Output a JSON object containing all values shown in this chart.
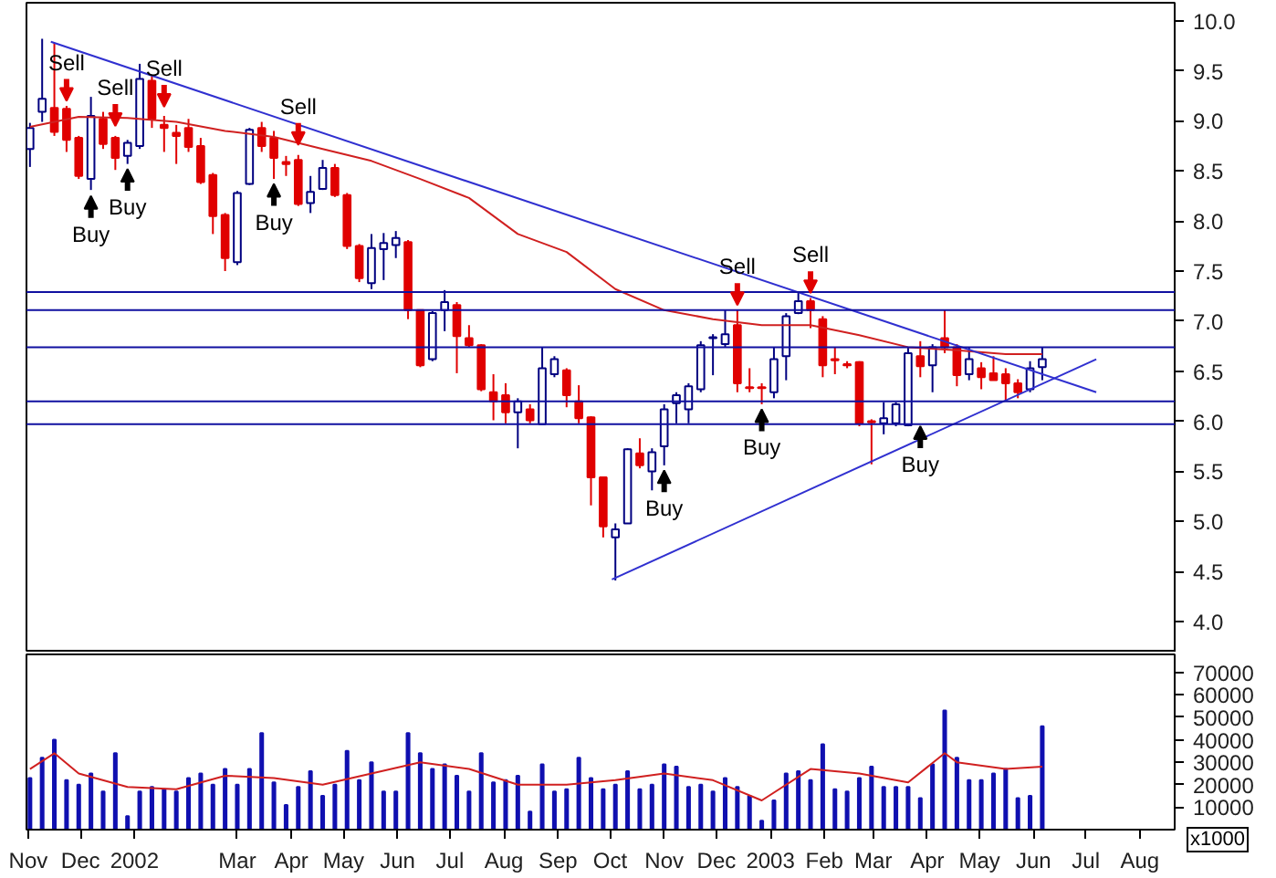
{
  "chart_data": [
    {
      "type": "candlestick",
      "colors": [
        "#ffffff",
        "#ffffff",
        "#e00000",
        "#e00000",
        "#e00000",
        "#ffffff",
        "#e00000",
        "#e00000",
        "#ffffff",
        "#ffffff",
        "#e00000",
        "#e00000",
        "#e00000",
        "#e00000",
        "#e00000",
        "#e00000",
        "#e00000",
        "#ffffff",
        "#ffffff",
        "#e00000",
        "#e00000",
        "#e00000",
        "#e00000",
        "#ffffff",
        "#ffffff",
        "#e00000",
        "#e00000",
        "#e00000",
        "#ffffff",
        "#ffffff",
        "#ffffff",
        "#e00000",
        "#e00000",
        "#ffffff",
        "#ffffff",
        "#e00000",
        "#e00000",
        "#e00000",
        "#e00000",
        "#e00000",
        "#ffffff",
        "#e00000",
        "#ffffff",
        "#ffffff",
        "#e00000",
        "#e00000",
        "#e00000",
        "#e00000",
        "#ffffff",
        "#ffffff",
        "#e00000",
        "#ffffff",
        "#ffffff",
        "#ffffff",
        "#ffffff",
        "#ffffff",
        "#ffffff",
        "#ffffff",
        "#e00000",
        "#e00000",
        "#e00000",
        "#ffffff",
        "#ffffff",
        "#ffffff",
        "#e00000",
        "#e00000",
        "#e00000",
        "#e00000",
        "#e00000",
        "#e00000",
        "#ffffff",
        "#ffffff",
        "#ffffff",
        "#e00000",
        "#ffffff",
        "#e00000",
        "#e00000",
        "#ffffff",
        "#e00000",
        "#e00000",
        "#e00000",
        "#e00000",
        "#ffffff",
        "#ffffff"
      ],
      "xlim": [
        "2001-10-31",
        "2003-08-21"
      ],
      "ylim": [
        3.69,
        10.18
      ],
      "tick_labels": "y",
      "yticks": [
        {
          "value": 4,
          "label": "4.0"
        },
        {
          "value": 4.5,
          "label": "4.5"
        },
        {
          "value": 5,
          "label": "5.0"
        },
        {
          "value": 5.5,
          "label": "5.5"
        },
        {
          "value": 6,
          "label": "6.0"
        },
        {
          "value": 6.5,
          "label": "6.5"
        },
        {
          "value": 7,
          "label": "7.0"
        },
        {
          "value": 7.5,
          "label": "7.5"
        },
        {
          "value": 8,
          "label": "8.0"
        },
        {
          "value": 8.5,
          "label": "8.5"
        },
        {
          "value": 9,
          "label": "9.0"
        },
        {
          "value": 9.5,
          "label": "9.5"
        },
        {
          "value": 10,
          "label": "10.0"
        }
      ],
      "x": [
        "2001-11-02",
        "2001-11-09",
        "2001-11-16",
        "2001-11-23",
        "2001-11-30",
        "2001-12-07",
        "2001-12-14",
        "2001-12-21",
        "2001-12-28",
        "2002-01-04",
        "2002-01-11",
        "2002-01-18",
        "2002-01-25",
        "2002-02-01",
        "2002-02-08",
        "2002-02-15",
        "2002-02-22",
        "2002-03-01",
        "2002-03-08",
        "2002-03-15",
        "2002-03-22",
        "2002-03-29",
        "2002-04-05",
        "2002-04-12",
        "2002-04-19",
        "2002-04-26",
        "2002-05-03",
        "2002-05-10",
        "2002-05-17",
        "2002-05-24",
        "2002-05-31",
        "2002-06-07",
        "2002-06-14",
        "2002-06-21",
        "2002-06-28",
        "2002-07-05",
        "2002-07-12",
        "2002-07-19",
        "2002-07-26",
        "2002-08-02",
        "2002-08-09",
        "2002-08-16",
        "2002-08-23",
        "2002-08-30",
        "2002-09-06",
        "2002-09-13",
        "2002-09-20",
        "2002-09-27",
        "2002-10-04",
        "2002-10-11",
        "2002-10-18",
        "2002-10-25",
        "2002-11-01",
        "2002-11-08",
        "2002-11-15",
        "2002-11-22",
        "2002-11-29",
        "2002-12-06",
        "2002-12-13",
        "2002-12-20",
        "2002-12-27",
        "2003-01-03",
        "2003-01-10",
        "2003-01-17",
        "2003-01-24",
        "2003-01-31",
        "2003-02-07",
        "2003-02-14",
        "2003-02-21",
        "2003-02-28",
        "2003-03-07",
        "2003-03-14",
        "2003-03-21",
        "2003-03-28",
        "2003-04-04",
        "2003-04-11",
        "2003-04-18",
        "2003-04-25",
        "2003-05-02",
        "2003-05-09",
        "2003-05-16",
        "2003-05-23",
        "2003-05-30",
        "2003-06-06"
      ],
      "ohlc": [
        [
          8.72,
          8.98,
          8.54,
          8.93
        ],
        [
          9.09,
          9.82,
          8.99,
          9.22
        ],
        [
          9.13,
          9.78,
          8.85,
          8.89
        ],
        [
          9.12,
          9.15,
          8.69,
          8.81
        ],
        [
          8.83,
          8.85,
          8.42,
          8.45
        ],
        [
          8.42,
          9.24,
          8.31,
          9.05
        ],
        [
          9.02,
          9.09,
          8.72,
          8.77
        ],
        [
          8.83,
          8.85,
          8.51,
          8.63
        ],
        [
          8.65,
          8.81,
          8.57,
          8.78
        ],
        [
          8.75,
          9.57,
          8.72,
          9.42
        ],
        [
          9.4,
          9.46,
          8.93,
          9.02
        ],
        [
          8.96,
          9.05,
          8.69,
          8.93
        ],
        [
          8.88,
          8.96,
          8.57,
          8.85
        ],
        [
          8.93,
          9.02,
          8.69,
          8.74
        ],
        [
          8.75,
          8.83,
          8.37,
          8.39
        ],
        [
          8.46,
          8.48,
          7.87,
          8.05
        ],
        [
          8.06,
          8.08,
          7.5,
          7.63
        ],
        [
          7.59,
          8.3,
          7.56,
          8.28
        ],
        [
          8.37,
          8.93,
          8.36,
          8.91
        ],
        [
          8.93,
          8.99,
          8.69,
          8.75
        ],
        [
          8.83,
          8.9,
          8.42,
          8.63
        ],
        [
          8.59,
          8.65,
          8.45,
          8.57
        ],
        [
          8.61,
          8.66,
          8.15,
          8.17
        ],
        [
          8.18,
          8.45,
          8.08,
          8.29
        ],
        [
          8.32,
          8.61,
          8.31,
          8.53
        ],
        [
          8.53,
          8.57,
          8.24,
          8.26
        ],
        [
          8.26,
          8.28,
          7.72,
          7.75
        ],
        [
          7.75,
          7.77,
          7.39,
          7.43
        ],
        [
          7.38,
          7.87,
          7.32,
          7.73
        ],
        [
          7.72,
          7.88,
          7.41,
          7.78
        ],
        [
          7.76,
          7.9,
          7.63,
          7.83
        ],
        [
          7.79,
          7.81,
          7.02,
          7.11
        ],
        [
          7.11,
          7.11,
          6.54,
          6.56
        ],
        [
          6.62,
          7.1,
          6.6,
          7.08
        ],
        [
          7.11,
          7.31,
          6.9,
          7.19
        ],
        [
          7.16,
          7.19,
          6.48,
          6.85
        ],
        [
          6.83,
          6.96,
          6.74,
          6.76
        ],
        [
          6.76,
          6.77,
          6.3,
          6.32
        ],
        [
          6.29,
          6.47,
          6.01,
          6.2
        ],
        [
          6.26,
          6.38,
          5.98,
          6.09
        ],
        [
          6.09,
          6.23,
          5.73,
          6.2
        ],
        [
          6.12,
          6.17,
          5.98,
          6.01
        ],
        [
          5.97,
          6.74,
          5.97,
          6.53
        ],
        [
          6.47,
          6.65,
          6.44,
          6.62
        ],
        [
          6.51,
          6.53,
          6.14,
          6.26
        ],
        [
          6.2,
          6.36,
          5.98,
          6.03
        ],
        [
          6.04,
          6.05,
          5.16,
          5.44
        ],
        [
          5.44,
          5.44,
          4.84,
          4.95
        ],
        [
          4.84,
          4.98,
          4.41,
          4.92
        ],
        [
          4.98,
          5.73,
          4.98,
          5.72
        ],
        [
          5.68,
          5.83,
          5.53,
          5.56
        ],
        [
          5.5,
          5.73,
          5.31,
          5.69
        ],
        [
          5.75,
          6.17,
          5.56,
          6.12
        ],
        [
          6.18,
          6.29,
          5.98,
          6.26
        ],
        [
          6.12,
          6.38,
          5.98,
          6.35
        ],
        [
          6.32,
          6.8,
          6.29,
          6.76
        ],
        [
          6.83,
          6.87,
          6.46,
          6.84
        ],
        [
          6.77,
          7.11,
          6.74,
          6.87
        ],
        [
          6.96,
          7.11,
          6.29,
          6.38
        ],
        [
          6.34,
          6.53,
          6.29,
          6.33
        ],
        [
          6.34,
          6.38,
          6.17,
          6.33
        ],
        [
          6.29,
          6.74,
          6.23,
          6.62
        ],
        [
          6.65,
          7.08,
          6.41,
          7.05
        ],
        [
          7.08,
          7.29,
          7.07,
          7.2
        ],
        [
          7.2,
          7.23,
          6.93,
          7.11
        ],
        [
          7.02,
          7.05,
          6.44,
          6.56
        ],
        [
          6.62,
          6.74,
          6.47,
          6.61
        ],
        [
          6.57,
          6.6,
          6.53,
          6.56
        ],
        [
          6.59,
          6.6,
          5.95,
          5.98
        ],
        [
          6.0,
          6.02,
          5.57,
          5.99
        ],
        [
          5.98,
          6.19,
          5.87,
          6.03
        ],
        [
          5.98,
          6.19,
          5.95,
          6.17
        ],
        [
          5.96,
          6.74,
          5.95,
          6.68
        ],
        [
          6.65,
          6.8,
          6.44,
          6.55
        ],
        [
          6.56,
          6.77,
          6.29,
          6.74
        ],
        [
          6.83,
          7.11,
          6.68,
          6.74
        ],
        [
          6.74,
          6.77,
          6.35,
          6.46
        ],
        [
          6.47,
          6.74,
          6.41,
          6.62
        ],
        [
          6.53,
          6.59,
          6.32,
          6.44
        ],
        [
          6.48,
          6.65,
          6.41,
          6.41
        ],
        [
          6.47,
          6.53,
          6.2,
          6.38
        ],
        [
          6.38,
          6.42,
          6.23,
          6.29
        ],
        [
          6.32,
          6.6,
          6.29,
          6.53
        ],
        [
          6.54,
          6.74,
          6.41,
          6.62
        ]
      ],
      "series": [
        {
          "type": "line",
          "color": "#d02020",
          "x": [
            "2001-11-02",
            "2001-11-30",
            "2001-12-28",
            "2002-01-25",
            "2002-02-22",
            "2002-03-22",
            "2002-04-19",
            "2002-05-17",
            "2002-06-14",
            "2002-07-12",
            "2002-08-09",
            "2002-09-06",
            "2002-10-04",
            "2002-11-01",
            "2002-11-29",
            "2002-12-27",
            "2003-01-24",
            "2003-02-21",
            "2003-03-21",
            "2003-04-18",
            "2003-05-16",
            "2003-06-06"
          ],
          "values": [
            8.94,
            9.04,
            9.03,
            8.99,
            8.9,
            8.84,
            8.72,
            8.6,
            8.42,
            8.23,
            7.87,
            7.69,
            7.32,
            7.11,
            7.02,
            6.96,
            6.96,
            6.86,
            6.74,
            6.71,
            6.67,
            6.67
          ]
        },
        {
          "type": "line",
          "color": "#3030d0",
          "x": [
            "2001-11-14",
            "2003-07-07"
          ],
          "values": [
            9.79,
            6.29
          ]
        },
        {
          "type": "line",
          "color": "#3030d0",
          "x": [
            "2002-10-02",
            "2003-07-07"
          ],
          "values": [
            4.42,
            6.62
          ]
        }
      ],
      "ref_lines": [
        {
          "axis": "y",
          "value": 7.29,
          "color": "#1010a0"
        },
        {
          "axis": "y",
          "value": 7.11,
          "color": "#1010a0"
        },
        {
          "axis": "y",
          "value": 6.74,
          "color": "#1010a0"
        },
        {
          "axis": "y",
          "value": 6.2,
          "color": "#1010a0"
        },
        {
          "axis": "y",
          "value": 5.97,
          "color": "#1010a0"
        }
      ],
      "annotations": [
        {
          "text": "Sell",
          "x": "2001-11-23",
          "y": 9.2
        },
        {
          "text": "Sell",
          "x": "2001-12-21",
          "y": 8.95
        },
        {
          "text": "Sell",
          "x": "2002-01-18",
          "y": 9.14
        },
        {
          "text": "Sell",
          "x": "2002-04-05",
          "y": 8.76
        },
        {
          "text": "Sell",
          "x": "2002-12-13",
          "y": 7.16
        },
        {
          "text": "Sell",
          "x": "2003-01-24",
          "y": 7.28
        },
        {
          "text": "Buy",
          "x": "2001-12-07",
          "y": 8.25
        },
        {
          "text": "Buy",
          "x": "2001-12-28",
          "y": 8.52
        },
        {
          "text": "Buy",
          "x": "2002-03-22",
          "y": 8.37
        },
        {
          "text": "Buy",
          "x": "2002-11-01",
          "y": 5.51
        },
        {
          "text": "Buy",
          "x": "2002-12-27",
          "y": 6.12
        },
        {
          "text": "Buy",
          "x": "2003-03-28",
          "y": 5.95
        }
      ]
    },
    {
      "type": "bar",
      "color": "#1010b0",
      "xlim": [
        "2001-10-31",
        "2003-08-21"
      ],
      "ylim": [
        0,
        78000
      ],
      "yticks": [
        10000,
        20000,
        30000,
        40000,
        50000,
        60000,
        70000
      ],
      "xticks": [
        {
          "value": "2001-11-01",
          "label": "Nov"
        },
        {
          "value": "2001-12-01",
          "label": "Dec"
        },
        {
          "value": "2002-01-01",
          "label": "2002"
        },
        {
          "value": "2002-03-01",
          "label": "Mar"
        },
        {
          "value": "2002-04-01",
          "label": "Apr"
        },
        {
          "value": "2002-05-01",
          "label": "May"
        },
        {
          "value": "2002-06-01",
          "label": "Jun"
        },
        {
          "value": "2002-07-01",
          "label": "Jul"
        },
        {
          "value": "2002-08-01",
          "label": "Aug"
        },
        {
          "value": "2002-09-01",
          "label": "Sep"
        },
        {
          "value": "2002-10-01",
          "label": "Oct"
        },
        {
          "value": "2002-11-01",
          "label": "Nov"
        },
        {
          "value": "2002-12-01",
          "label": "Dec"
        },
        {
          "value": "2003-01-01",
          "label": "2003"
        },
        {
          "value": "2003-02-01",
          "label": "Feb"
        },
        {
          "value": "2003-03-01",
          "label": "Mar"
        },
        {
          "value": "2003-04-01",
          "label": "Apr"
        },
        {
          "value": "2003-05-01",
          "label": "May"
        },
        {
          "value": "2003-06-01",
          "label": "Jun"
        },
        {
          "value": "2003-07-01",
          "label": "Jul"
        },
        {
          "value": "2003-08-01",
          "label": "Aug"
        }
      ],
      "x": [
        "2001-11-02",
        "2001-11-09",
        "2001-11-16",
        "2001-11-23",
        "2001-11-30",
        "2001-12-07",
        "2001-12-14",
        "2001-12-21",
        "2001-12-28",
        "2002-01-04",
        "2002-01-11",
        "2002-01-18",
        "2002-01-25",
        "2002-02-01",
        "2002-02-08",
        "2002-02-15",
        "2002-02-22",
        "2002-03-01",
        "2002-03-08",
        "2002-03-15",
        "2002-03-22",
        "2002-03-29",
        "2002-04-05",
        "2002-04-12",
        "2002-04-19",
        "2002-04-26",
        "2002-05-03",
        "2002-05-10",
        "2002-05-17",
        "2002-05-24",
        "2002-05-31",
        "2002-06-07",
        "2002-06-14",
        "2002-06-21",
        "2002-06-28",
        "2002-07-05",
        "2002-07-12",
        "2002-07-19",
        "2002-07-26",
        "2002-08-02",
        "2002-08-09",
        "2002-08-16",
        "2002-08-23",
        "2002-08-30",
        "2002-09-06",
        "2002-09-13",
        "2002-09-20",
        "2002-09-27",
        "2002-10-04",
        "2002-10-11",
        "2002-10-18",
        "2002-10-25",
        "2002-11-01",
        "2002-11-08",
        "2002-11-15",
        "2002-11-22",
        "2002-11-29",
        "2002-12-06",
        "2002-12-13",
        "2002-12-20",
        "2002-12-27",
        "2003-01-03",
        "2003-01-10",
        "2003-01-17",
        "2003-01-24",
        "2003-01-31",
        "2003-02-07",
        "2003-02-14",
        "2003-02-21",
        "2003-02-28",
        "2003-03-07",
        "2003-03-14",
        "2003-03-21",
        "2003-03-28",
        "2003-04-04",
        "2003-04-11",
        "2003-04-18",
        "2003-04-25",
        "2003-05-02",
        "2003-05-09",
        "2003-05-16",
        "2003-05-23",
        "2003-05-30",
        "2003-06-06"
      ],
      "values": [
        23000,
        32000,
        40000,
        22000,
        20000,
        25000,
        17000,
        34000,
        6000,
        17000,
        19000,
        18000,
        17000,
        23000,
        25000,
        20000,
        27000,
        20000,
        27000,
        43000,
        21000,
        11000,
        19000,
        26000,
        15000,
        20000,
        35000,
        22000,
        30000,
        17000,
        17000,
        43000,
        34000,
        27000,
        29000,
        24000,
        17000,
        34000,
        21000,
        22000,
        24000,
        8000,
        29000,
        17000,
        18000,
        32000,
        23000,
        18000,
        20000,
        26000,
        18000,
        20000,
        29000,
        28000,
        19000,
        20000,
        17000,
        23000,
        19000,
        15000,
        4000,
        13000,
        25000,
        26000,
        22000,
        38000,
        18000,
        17000,
        23000,
        28000,
        19000,
        19000,
        19000,
        14000,
        29000,
        53000,
        32000,
        22000,
        22000,
        25000,
        27000,
        14000,
        15000,
        46000
      ],
      "series": [
        {
          "type": "line",
          "color": "#d02020",
          "x": [
            "2001-11-02",
            "2001-11-16",
            "2001-11-30",
            "2001-12-28",
            "2002-01-25",
            "2002-02-22",
            "2002-03-22",
            "2002-04-19",
            "2002-05-17",
            "2002-06-14",
            "2002-07-12",
            "2002-08-09",
            "2002-09-06",
            "2002-10-04",
            "2002-11-01",
            "2002-11-29",
            "2002-12-27",
            "2003-01-24",
            "2003-02-21",
            "2003-03-21",
            "2003-04-11",
            "2003-04-18",
            "2003-05-16",
            "2003-06-06"
          ],
          "values": [
            27000,
            34000,
            25000,
            19000,
            18000,
            24000,
            23000,
            20000,
            25000,
            30000,
            27000,
            20000,
            20000,
            22000,
            25000,
            22000,
            13000,
            27000,
            25000,
            21000,
            34000,
            30000,
            27000,
            28000
          ]
        }
      ],
      "annotations": [
        "x1000"
      ]
    }
  ]
}
